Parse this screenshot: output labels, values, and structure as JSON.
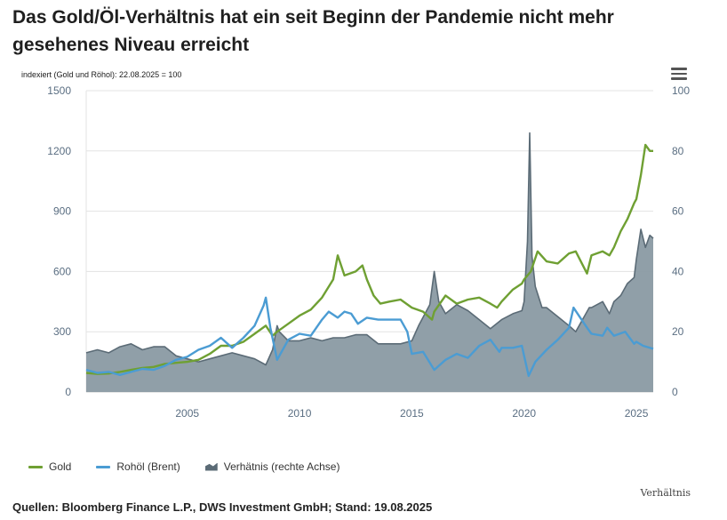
{
  "header": {
    "title": "Das Gold/Öl-Verhältnis hat ein seit Beginn der Pandemie nicht mehr gesehenes Niveau erreicht"
  },
  "menu": {
    "icon": "hamburger-menu-icon"
  },
  "footer": {
    "credit": "Verhältnis",
    "source": "Quellen: Bloomberg Finance L.P., DWS Investment GmbH; Stand: 19.08.2025"
  },
  "colors": {
    "gold": "#6fa033",
    "oil": "#4b9cd3",
    "ratio_fill": "#8a9aa3",
    "ratio_line": "#5b6b76",
    "grid": "#e3e3e3",
    "tick_text": "#5a6e82"
  },
  "chart_data": {
    "type": "line",
    "subtitle": "indexiert (Gold und Röhol): 22.08.2025 = 100",
    "xlim": [
      2000.5,
      2025.75
    ],
    "x_ticks": [
      2005,
      2010,
      2015,
      2020,
      2025
    ],
    "y_left": {
      "ticks": [
        0,
        300,
        600,
        900,
        1200,
        1500
      ],
      "lim": [
        0,
        1500
      ]
    },
    "y_right": {
      "ticks": [
        0,
        20,
        40,
        60,
        80,
        100
      ],
      "lim": [
        0,
        100
      ],
      "label": "Verhätnis (rechte Achse)"
    },
    "grid": true,
    "legend_position": "bottom-left",
    "series": [
      {
        "name": "Gold",
        "axis": "left",
        "style": "line",
        "points": [
          [
            2000.5,
            95
          ],
          [
            2001,
            90
          ],
          [
            2001.5,
            92
          ],
          [
            2002,
            100
          ],
          [
            2002.5,
            110
          ],
          [
            2003,
            120
          ],
          [
            2003.5,
            125
          ],
          [
            2004,
            140
          ],
          [
            2004.5,
            145
          ],
          [
            2005,
            150
          ],
          [
            2005.5,
            160
          ],
          [
            2006,
            190
          ],
          [
            2006.5,
            230
          ],
          [
            2007,
            230
          ],
          [
            2007.5,
            250
          ],
          [
            2008,
            290
          ],
          [
            2008.5,
            330
          ],
          [
            2008.8,
            280
          ],
          [
            2009,
            300
          ],
          [
            2009.5,
            340
          ],
          [
            2010,
            380
          ],
          [
            2010.5,
            410
          ],
          [
            2011,
            470
          ],
          [
            2011.5,
            560
          ],
          [
            2011.7,
            680
          ],
          [
            2012,
            580
          ],
          [
            2012.5,
            600
          ],
          [
            2012.8,
            630
          ],
          [
            2013,
            560
          ],
          [
            2013.3,
            480
          ],
          [
            2013.6,
            440
          ],
          [
            2014,
            450
          ],
          [
            2014.5,
            460
          ],
          [
            2015,
            420
          ],
          [
            2015.5,
            400
          ],
          [
            2015.9,
            360
          ],
          [
            2016,
            400
          ],
          [
            2016.5,
            480
          ],
          [
            2017,
            440
          ],
          [
            2017.5,
            460
          ],
          [
            2018,
            470
          ],
          [
            2018.5,
            440
          ],
          [
            2018.8,
            420
          ],
          [
            2019,
            450
          ],
          [
            2019.5,
            510
          ],
          [
            2019.9,
            540
          ],
          [
            2020,
            560
          ],
          [
            2020.3,
            600
          ],
          [
            2020.6,
            700
          ],
          [
            2021,
            650
          ],
          [
            2021.5,
            640
          ],
          [
            2022,
            690
          ],
          [
            2022.3,
            700
          ],
          [
            2022.8,
            590
          ],
          [
            2023,
            680
          ],
          [
            2023.5,
            700
          ],
          [
            2023.8,
            680
          ],
          [
            2024,
            720
          ],
          [
            2024.3,
            800
          ],
          [
            2024.6,
            860
          ],
          [
            2024.9,
            940
          ],
          [
            2025,
            960
          ],
          [
            2025.2,
            1080
          ],
          [
            2025.4,
            1230
          ],
          [
            2025.6,
            1200
          ],
          [
            2025.75,
            1200
          ]
        ]
      },
      {
        "name": "Rohöl (Brent)",
        "axis": "left",
        "style": "line",
        "points": [
          [
            2000.5,
            110
          ],
          [
            2001,
            95
          ],
          [
            2001.5,
            100
          ],
          [
            2002,
            85
          ],
          [
            2002.5,
            100
          ],
          [
            2003,
            115
          ],
          [
            2003.5,
            110
          ],
          [
            2004,
            130
          ],
          [
            2004.5,
            160
          ],
          [
            2005,
            175
          ],
          [
            2005.5,
            210
          ],
          [
            2006,
            230
          ],
          [
            2006.5,
            270
          ],
          [
            2007,
            220
          ],
          [
            2007.5,
            270
          ],
          [
            2008,
            330
          ],
          [
            2008.4,
            430
          ],
          [
            2008.5,
            470
          ],
          [
            2008.7,
            320
          ],
          [
            2009,
            160
          ],
          [
            2009.5,
            260
          ],
          [
            2010,
            290
          ],
          [
            2010.5,
            280
          ],
          [
            2011,
            360
          ],
          [
            2011.3,
            400
          ],
          [
            2011.7,
            370
          ],
          [
            2012,
            400
          ],
          [
            2012.3,
            390
          ],
          [
            2012.6,
            340
          ],
          [
            2013,
            370
          ],
          [
            2013.5,
            360
          ],
          [
            2014,
            360
          ],
          [
            2014.5,
            360
          ],
          [
            2014.8,
            300
          ],
          [
            2015,
            190
          ],
          [
            2015.5,
            200
          ],
          [
            2016,
            110
          ],
          [
            2016.5,
            160
          ],
          [
            2017,
            190
          ],
          [
            2017.5,
            170
          ],
          [
            2018,
            230
          ],
          [
            2018.5,
            260
          ],
          [
            2018.9,
            200
          ],
          [
            2019,
            220
          ],
          [
            2019.5,
            220
          ],
          [
            2019.9,
            230
          ],
          [
            2020,
            180
          ],
          [
            2020.2,
            80
          ],
          [
            2020.5,
            150
          ],
          [
            2021,
            210
          ],
          [
            2021.5,
            260
          ],
          [
            2022,
            320
          ],
          [
            2022.2,
            420
          ],
          [
            2022.5,
            370
          ],
          [
            2022.8,
            320
          ],
          [
            2023,
            290
          ],
          [
            2023.5,
            280
          ],
          [
            2023.7,
            320
          ],
          [
            2024,
            280
          ],
          [
            2024.5,
            300
          ],
          [
            2024.9,
            240
          ],
          [
            2025,
            250
          ],
          [
            2025.3,
            230
          ],
          [
            2025.75,
            215
          ]
        ]
      },
      {
        "name": "Verhätnis (rechte Achse)",
        "axis": "right",
        "style": "area",
        "points": [
          [
            2000.5,
            13
          ],
          [
            2001,
            14
          ],
          [
            2001.5,
            13
          ],
          [
            2002,
            15
          ],
          [
            2002.5,
            16
          ],
          [
            2003,
            14
          ],
          [
            2003.5,
            15
          ],
          [
            2004,
            15
          ],
          [
            2004.5,
            12
          ],
          [
            2005,
            11
          ],
          [
            2005.5,
            10
          ],
          [
            2006,
            11
          ],
          [
            2006.5,
            12
          ],
          [
            2007,
            13
          ],
          [
            2007.5,
            12
          ],
          [
            2008,
            11
          ],
          [
            2008.5,
            9
          ],
          [
            2008.8,
            14
          ],
          [
            2009,
            22
          ],
          [
            2009.1,
            20
          ],
          [
            2009.5,
            17
          ],
          [
            2010,
            17
          ],
          [
            2010.5,
            18
          ],
          [
            2011,
            17
          ],
          [
            2011.5,
            18
          ],
          [
            2012,
            18
          ],
          [
            2012.5,
            19
          ],
          [
            2013,
            19
          ],
          [
            2013.5,
            16
          ],
          [
            2014,
            16
          ],
          [
            2014.5,
            16
          ],
          [
            2015,
            17
          ],
          [
            2015.3,
            22
          ],
          [
            2015.8,
            29
          ],
          [
            2016,
            40
          ],
          [
            2016.2,
            30
          ],
          [
            2016.5,
            26
          ],
          [
            2017,
            29
          ],
          [
            2017.5,
            27
          ],
          [
            2018,
            24
          ],
          [
            2018.5,
            21
          ],
          [
            2019,
            24
          ],
          [
            2019.5,
            26
          ],
          [
            2019.9,
            27
          ],
          [
            2020,
            30
          ],
          [
            2020.15,
            50
          ],
          [
            2020.25,
            86
          ],
          [
            2020.35,
            45
          ],
          [
            2020.5,
            35
          ],
          [
            2020.8,
            28
          ],
          [
            2021,
            28
          ],
          [
            2021.5,
            25
          ],
          [
            2022,
            22
          ],
          [
            2022.3,
            20
          ],
          [
            2022.6,
            24
          ],
          [
            2022.9,
            28
          ],
          [
            2023,
            28
          ],
          [
            2023.5,
            30
          ],
          [
            2023.8,
            26
          ],
          [
            2024,
            30
          ],
          [
            2024.3,
            32
          ],
          [
            2024.6,
            36
          ],
          [
            2024.9,
            38
          ],
          [
            2025,
            44
          ],
          [
            2025.2,
            54
          ],
          [
            2025.4,
            48
          ],
          [
            2025.6,
            52
          ],
          [
            2025.75,
            51
          ]
        ]
      }
    ]
  }
}
